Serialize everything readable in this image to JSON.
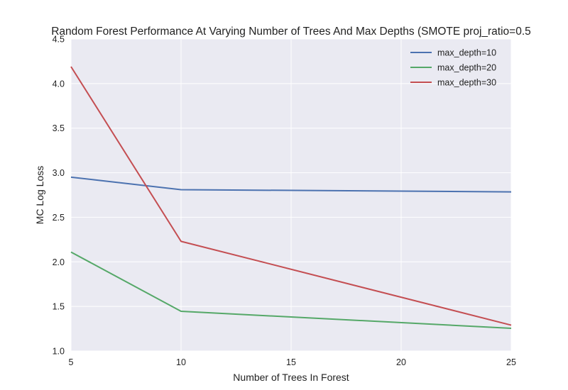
{
  "chart_data": {
    "type": "line",
    "title": "Random Forest Performance At Varying Number of Trees And Max Depths (SMOTE proj_ratio=0.5",
    "xlabel": "Number of Trees In Forest",
    "ylabel": "MC Log Loss",
    "x": [
      5,
      10,
      25
    ],
    "xlim": [
      5,
      25
    ],
    "ylim": [
      1.0,
      4.5
    ],
    "xticks": [
      5,
      10,
      15,
      20,
      25
    ],
    "yticks": [
      1.0,
      1.5,
      2.0,
      2.5,
      3.0,
      3.5,
      4.0,
      4.5
    ],
    "grid": true,
    "legend_position": "top-right",
    "series": [
      {
        "name": "max_depth=10",
        "color": "#4c72b0",
        "values": [
          2.95,
          2.81,
          2.785
        ]
      },
      {
        "name": "max_depth=20",
        "color": "#55a868",
        "values": [
          2.11,
          1.445,
          1.255
        ]
      },
      {
        "name": "max_depth=30",
        "color": "#c44e52",
        "values": [
          4.19,
          2.23,
          1.29
        ]
      }
    ]
  }
}
